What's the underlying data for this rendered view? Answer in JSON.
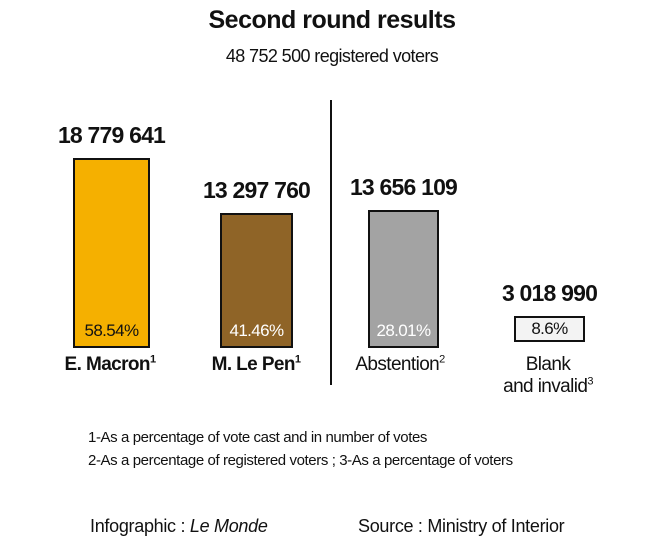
{
  "title": "Second round results",
  "subtitle": "48 752 500 registered voters",
  "chart_data": {
    "type": "bar",
    "title": "Second round results",
    "subtitle": "48 752 500 registered voters",
    "categories": [
      "E. Macron",
      "M. Le Pen",
      "Abstention",
      "Blank and invalid"
    ],
    "values": [
      18779641,
      13297760,
      13656109,
      3018990
    ],
    "value_labels": [
      "18 779 641",
      "13 297 760",
      "13 656 109",
      "3 018 990"
    ],
    "percent_labels": [
      "58.54%",
      "41.46%",
      "28.01%",
      "8.6%"
    ],
    "percents": [
      58.54,
      41.46,
      28.01,
      8.6
    ],
    "footnote_marks": [
      "1",
      "1",
      "2",
      "3"
    ],
    "colors": [
      "#f5b000",
      "#8f6427",
      "#a3a3a3",
      "#f3f3f3"
    ],
    "ylim": [
      0,
      18779641
    ]
  },
  "labels": {
    "macron_name": "E. Macron",
    "macron_mark": "1",
    "lepen_name": "M. Le Pen",
    "lepen_mark": "1",
    "abstention_name": "Abstention",
    "abstention_mark": "2",
    "blank_line1": "Blank",
    "blank_line2": "and invalid",
    "blank_mark": "3"
  },
  "notes": {
    "line1": "1-As a percentage of vote cast and in number of votes",
    "line2": "2-As a percentage of registered voters ; 3-As a percentage of voters"
  },
  "credits": {
    "infographic_label": "Infographic : ",
    "infographic_source": "Le Monde",
    "source": "Source : Ministry of Interior"
  }
}
